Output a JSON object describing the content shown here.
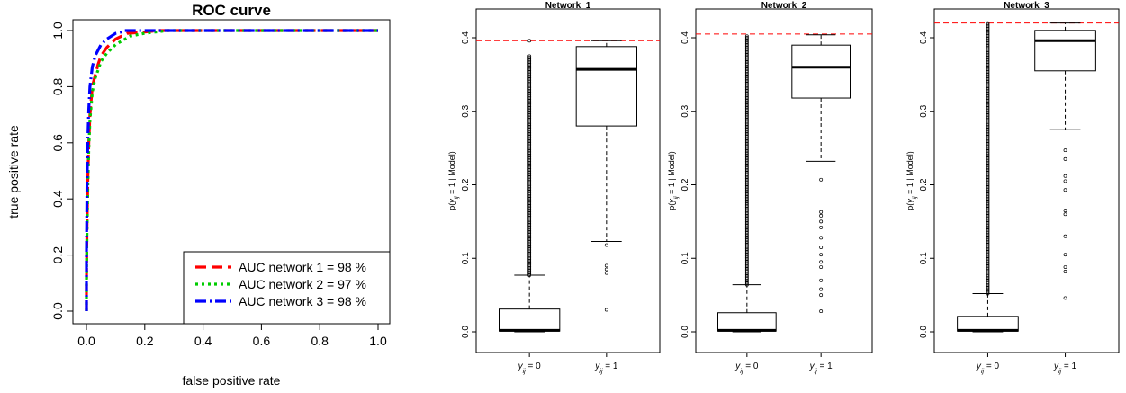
{
  "chart_data": [
    {
      "type": "line",
      "title": "ROC curve",
      "xlabel": "false positive rate",
      "ylabel": "true positive rate",
      "xlim": [
        0,
        1
      ],
      "ylim": [
        0,
        1
      ],
      "x_ticks": [
        "0.0",
        "0.2",
        "0.4",
        "0.6",
        "0.8",
        "1.0"
      ],
      "y_ticks": [
        "0.0",
        "0.2",
        "0.4",
        "0.6",
        "0.8",
        "1.0"
      ],
      "legend_position": "bottom-right",
      "series": [
        {
          "name": "AUC network 1 = 98 %",
          "color": "#ff0000",
          "line_style": "dashed",
          "x": [
            0,
            0,
            0.002,
            0.005,
            0.008,
            0.012,
            0.02,
            0.03,
            0.04,
            0.05,
            0.07,
            0.1,
            0.14,
            0.2,
            0.25,
            1.0
          ],
          "y": [
            0,
            0.1,
            0.3,
            0.48,
            0.6,
            0.7,
            0.8,
            0.84,
            0.88,
            0.91,
            0.94,
            0.97,
            0.99,
            0.995,
            1.0,
            1.0
          ]
        },
        {
          "name": "AUC network 2 = 97 %",
          "color": "#00cc00",
          "line_style": "dotted",
          "x": [
            0,
            0,
            0.002,
            0.005,
            0.008,
            0.012,
            0.02,
            0.03,
            0.04,
            0.05,
            0.07,
            0.1,
            0.15,
            0.2,
            0.28,
            1.0
          ],
          "y": [
            0,
            0.1,
            0.28,
            0.45,
            0.58,
            0.68,
            0.78,
            0.83,
            0.86,
            0.89,
            0.92,
            0.95,
            0.98,
            0.99,
            1.0,
            1.0
          ]
        },
        {
          "name": "AUC network 3 = 98 %",
          "color": "#0000ff",
          "line_style": "dashdot",
          "x": [
            0,
            0,
            0.002,
            0.005,
            0.008,
            0.012,
            0.02,
            0.03,
            0.05,
            0.07,
            0.1,
            0.12,
            0.13,
            0.2,
            1.0
          ],
          "y": [
            0,
            0.2,
            0.45,
            0.62,
            0.72,
            0.8,
            0.87,
            0.91,
            0.95,
            0.97,
            0.99,
            0.995,
            1.0,
            1.0,
            1.0
          ]
        }
      ]
    },
    {
      "type": "box",
      "title": "Network_1",
      "ylabel": "p(y_ij = 1 | Model)",
      "ylim": [
        0,
        0.4
      ],
      "y_ticks": [
        "0.0",
        "0.1",
        "0.2",
        "0.3",
        "0.4"
      ],
      "categories": [
        "y_ij = 0",
        "y_ij = 1"
      ],
      "reference_line": 0.396,
      "boxes": [
        {
          "category": "y_ij = 0",
          "min": 0,
          "q1": 0.001,
          "median": 0.002,
          "q3": 0.031,
          "whisker_high": 0.077,
          "outlier_range": [
            0.077,
            0.375
          ],
          "outliers": [
            0.396
          ]
        },
        {
          "category": "y_ij = 1",
          "whisker_low": 0.123,
          "q1": 0.28,
          "median": 0.357,
          "q3": 0.388,
          "whisker_high": 0.396,
          "outliers": [
            0.118,
            0.09,
            0.085,
            0.08,
            0.03
          ]
        }
      ]
    },
    {
      "type": "box",
      "title": "Network_2",
      "ylabel": "p(y_ij = 1 | Model)",
      "ylim": [
        0,
        0.4
      ],
      "y_ticks": [
        "0.0",
        "0.1",
        "0.2",
        "0.3",
        "0.4"
      ],
      "categories": [
        "y_ij = 0",
        "y_ij = 1"
      ],
      "reference_line": 0.405,
      "boxes": [
        {
          "category": "y_ij = 0",
          "min": 0,
          "q1": 0.001,
          "median": 0.002,
          "q3": 0.026,
          "whisker_high": 0.064,
          "outlier_range": [
            0.064,
            0.402
          ],
          "outliers": []
        },
        {
          "category": "y_ij = 1",
          "whisker_low": 0.232,
          "q1": 0.318,
          "median": 0.36,
          "q3": 0.39,
          "whisker_high": 0.404,
          "outliers": [
            0.207,
            0.163,
            0.158,
            0.15,
            0.142,
            0.128,
            0.115,
            0.105,
            0.095,
            0.088,
            0.07,
            0.058,
            0.05,
            0.028
          ]
        }
      ]
    },
    {
      "type": "box",
      "title": "Network_3",
      "ylabel": "p(y_ij = 1 | Model)",
      "ylim": [
        0,
        0.4
      ],
      "y_ticks": [
        "0.0",
        "0.1",
        "0.2",
        "0.3",
        "0.4"
      ],
      "categories": [
        "y_ij = 0",
        "y_ij = 1"
      ],
      "reference_line": 0.42,
      "boxes": [
        {
          "category": "y_ij = 0",
          "min": 0,
          "q1": 0.001,
          "median": 0.002,
          "q3": 0.021,
          "whisker_high": 0.052,
          "outlier_range": [
            0.052,
            0.42
          ],
          "outliers": []
        },
        {
          "category": "y_ij = 1",
          "whisker_low": 0.275,
          "q1": 0.355,
          "median": 0.396,
          "q3": 0.41,
          "whisker_high": 0.42,
          "outliers": [
            0.247,
            0.235,
            0.212,
            0.205,
            0.193,
            0.165,
            0.16,
            0.13,
            0.105,
            0.088,
            0.082,
            0.046
          ]
        }
      ]
    }
  ]
}
